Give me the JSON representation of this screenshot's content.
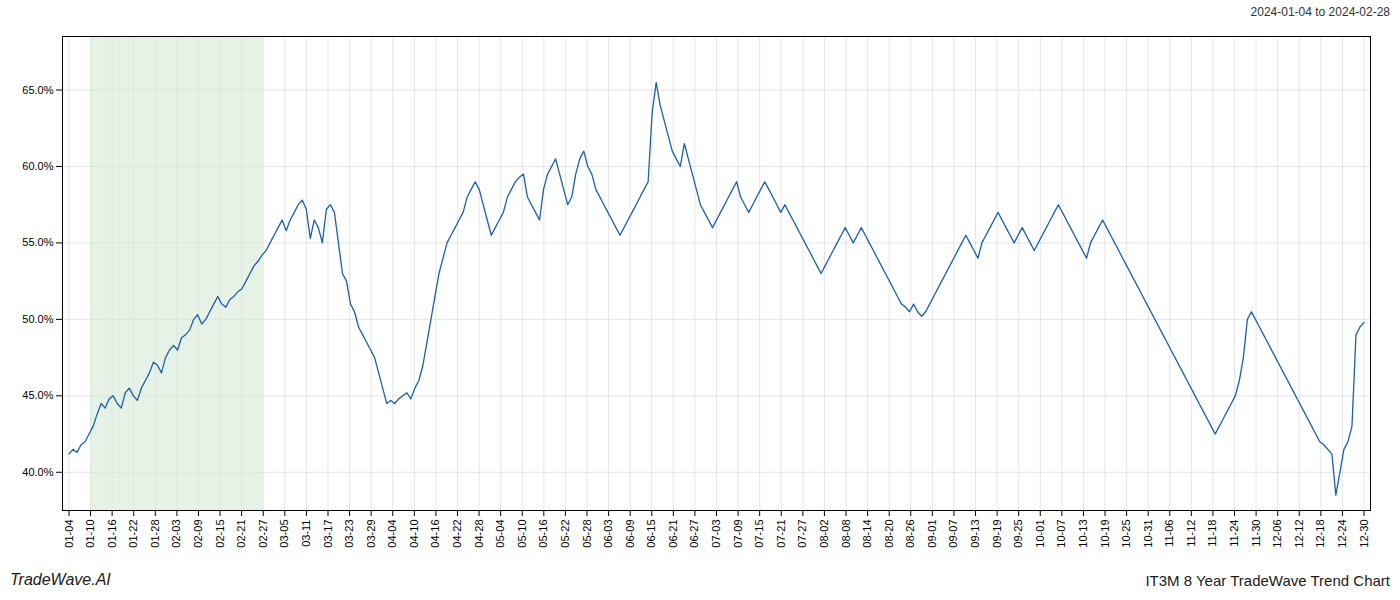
{
  "chart_data": {
    "type": "line",
    "title": "IT3M 8 Year TradeWave Trend Chart",
    "subtitle": "2024-01-04 to 2024-02-28",
    "annotations": [
      "TradeWave.AI"
    ],
    "color": "#1c5faa",
    "grid": true,
    "xlim": [
      -1.61,
      323.61
    ],
    "xticks": [
      {
        "value": 0,
        "label": "01-04"
      },
      {
        "value": 5.3667,
        "label": "01-10"
      },
      {
        "value": 10.7333,
        "label": "01-16"
      },
      {
        "value": 16.1,
        "label": "01-22"
      },
      {
        "value": 21.4667,
        "label": "01-28"
      },
      {
        "value": 26.8333,
        "label": "02-03"
      },
      {
        "value": 32.2,
        "label": "02-09"
      },
      {
        "value": 37.5667,
        "label": "02-15"
      },
      {
        "value": 42.9333,
        "label": "02-21"
      },
      {
        "value": 48.3,
        "label": "02-27"
      },
      {
        "value": 53.6667,
        "label": "03-05"
      },
      {
        "value": 59.0333,
        "label": "03-11"
      },
      {
        "value": 64.4,
        "label": "03-17"
      },
      {
        "value": 69.7667,
        "label": "03-23"
      },
      {
        "value": 75.1333,
        "label": "03-29"
      },
      {
        "value": 80.5,
        "label": "04-04"
      },
      {
        "value": 85.8667,
        "label": "04-10"
      },
      {
        "value": 91.2333,
        "label": "04-16"
      },
      {
        "value": 96.6,
        "label": "04-22"
      },
      {
        "value": 101.9667,
        "label": "04-28"
      },
      {
        "value": 107.3333,
        "label": "05-04"
      },
      {
        "value": 112.7,
        "label": "05-10"
      },
      {
        "value": 118.0667,
        "label": "05-16"
      },
      {
        "value": 123.4333,
        "label": "05-22"
      },
      {
        "value": 128.8,
        "label": "05-28"
      },
      {
        "value": 134.1667,
        "label": "06-03"
      },
      {
        "value": 139.5333,
        "label": "06-09"
      },
      {
        "value": 144.9,
        "label": "06-15"
      },
      {
        "value": 150.2667,
        "label": "06-21"
      },
      {
        "value": 155.6333,
        "label": "06-27"
      },
      {
        "value": 161,
        "label": "07-03"
      },
      {
        "value": 166.3667,
        "label": "07-09"
      },
      {
        "value": 171.7333,
        "label": "07-15"
      },
      {
        "value": 177.1,
        "label": "07-21"
      },
      {
        "value": 182.4667,
        "label": "07-27"
      },
      {
        "value": 187.8333,
        "label": "08-02"
      },
      {
        "value": 193.2,
        "label": "08-08"
      },
      {
        "value": 198.5667,
        "label": "08-14"
      },
      {
        "value": 203.9333,
        "label": "08-20"
      },
      {
        "value": 209.3,
        "label": "08-26"
      },
      {
        "value": 214.6667,
        "label": "09-01"
      },
      {
        "value": 220.0333,
        "label": "09-07"
      },
      {
        "value": 225.4,
        "label": "09-13"
      },
      {
        "value": 230.7667,
        "label": "09-19"
      },
      {
        "value": 236.1333,
        "label": "09-25"
      },
      {
        "value": 241.5,
        "label": "10-01"
      },
      {
        "value": 246.8667,
        "label": "10-07"
      },
      {
        "value": 252.2333,
        "label": "10-13"
      },
      {
        "value": 257.6,
        "label": "10-19"
      },
      {
        "value": 262.9667,
        "label": "10-25"
      },
      {
        "value": 268.3333,
        "label": "10-31"
      },
      {
        "value": 273.7,
        "label": "11-06"
      },
      {
        "value": 279.0667,
        "label": "11-12"
      },
      {
        "value": 284.4333,
        "label": "11-18"
      },
      {
        "value": 289.8,
        "label": "11-24"
      },
      {
        "value": 295.1667,
        "label": "11-30"
      },
      {
        "value": 300.5333,
        "label": "12-06"
      },
      {
        "value": 305.9,
        "label": "12-12"
      },
      {
        "value": 311.2667,
        "label": "12-18"
      },
      {
        "value": 316.6333,
        "label": "12-24"
      },
      {
        "value": 322,
        "label": "12-30"
      }
    ],
    "ylim": [
      37.5,
      68.5
    ],
    "yticks": [
      {
        "value": 40.0,
        "label": "40.0%"
      },
      {
        "value": 45.0,
        "label": "45.0%"
      },
      {
        "value": 50.0,
        "label": "50.0%"
      },
      {
        "value": 55.0,
        "label": "55.0%"
      },
      {
        "value": 60.0,
        "label": "60.0%"
      },
      {
        "value": 65.0,
        "label": "65.0%"
      }
    ],
    "span": {
      "from": "01-10",
      "to": "02-27",
      "color": "#d6ead6"
    },
    "x": [
      0,
      1,
      2,
      3,
      4,
      5,
      6,
      7,
      8,
      9,
      10,
      11,
      12,
      13,
      14,
      15,
      16,
      17,
      18,
      19,
      20,
      21,
      22,
      23,
      24,
      25,
      26,
      27,
      28,
      29,
      30,
      31,
      32,
      33,
      34,
      35,
      36,
      37,
      38,
      39,
      40,
      41,
      42,
      43,
      44,
      45,
      46,
      47,
      48,
      49,
      50,
      51,
      52,
      53,
      54,
      55,
      56,
      57,
      58,
      59,
      60,
      61,
      62,
      63,
      64,
      65,
      66,
      67,
      68,
      69,
      70,
      71,
      72,
      73,
      74,
      75,
      76,
      77,
      78,
      79,
      80,
      81,
      82,
      83,
      84,
      85,
      86,
      87,
      88,
      89,
      90,
      91,
      92,
      93,
      94,
      95,
      96,
      97,
      98,
      99,
      100,
      101,
      102,
      103,
      104,
      105,
      106,
      107,
      108,
      109,
      110,
      111,
      112,
      113,
      114,
      115,
      116,
      117,
      118,
      119,
      120,
      121,
      122,
      123,
      124,
      125,
      126,
      127,
      128,
      129,
      130,
      131,
      132,
      133,
      134,
      135,
      136,
      137,
      138,
      139,
      140,
      141,
      142,
      143,
      144,
      145,
      146,
      147,
      148,
      149,
      150,
      151,
      152,
      153,
      154,
      155,
      156,
      157,
      158,
      159,
      160,
      161,
      162,
      163,
      164,
      165,
      166,
      167,
      168,
      169,
      170,
      171,
      172,
      173,
      174,
      175,
      176,
      177,
      178,
      179,
      180,
      181,
      182,
      183,
      184,
      185,
      186,
      187,
      188,
      189,
      190,
      191,
      192,
      193,
      194,
      195,
      196,
      197,
      198,
      199,
      200,
      201,
      202,
      203,
      204,
      205,
      206,
      207,
      208,
      209,
      210,
      211,
      212,
      213,
      214,
      215,
      216,
      217,
      218,
      219,
      220,
      221,
      222,
      223,
      224,
      225,
      226,
      227,
      228,
      229,
      230,
      231,
      232,
      233,
      234,
      235,
      236,
      237,
      238,
      239,
      240,
      241,
      242,
      243,
      244,
      245,
      246,
      247,
      248,
      249,
      250,
      251,
      252,
      253,
      254,
      255,
      256,
      257,
      258,
      259,
      260,
      261,
      262,
      263,
      264,
      265,
      266,
      267,
      268,
      269,
      270,
      271,
      272,
      273,
      274,
      275,
      276,
      277,
      278,
      279,
      280,
      281,
      282,
      283,
      284,
      285,
      286,
      287,
      288,
      289,
      290,
      291,
      292,
      293,
      294,
      295,
      296,
      297,
      298,
      299,
      300,
      301,
      302,
      303,
      304,
      305,
      306,
      307,
      308,
      309,
      310,
      311,
      312,
      313,
      314,
      315,
      316,
      317,
      318,
      319,
      320,
      321,
      322
    ],
    "values": [
      41.2,
      41.5,
      41.3,
      41.8,
      42.0,
      42.5,
      43.0,
      43.8,
      44.5,
      44.2,
      44.8,
      45.0,
      44.5,
      44.2,
      45.2,
      45.5,
      45.0,
      44.7,
      45.5,
      46.0,
      46.5,
      47.2,
      47.0,
      46.5,
      47.5,
      48.0,
      48.3,
      48.0,
      48.8,
      49.0,
      49.3,
      50.0,
      50.3,
      49.7,
      50.0,
      50.5,
      51.0,
      51.5,
      51.0,
      50.8,
      51.3,
      51.5,
      51.8,
      52.0,
      52.5,
      53.0,
      53.5,
      53.8,
      54.2,
      54.5,
      55.0,
      55.5,
      56.0,
      56.5,
      55.8,
      56.5,
      57.0,
      57.5,
      57.8,
      57.2,
      55.3,
      56.5,
      56.0,
      55.0,
      57.2,
      57.5,
      57.0,
      55.0,
      53.0,
      52.5,
      51.0,
      50.5,
      49.5,
      49.0,
      48.5,
      48.0,
      47.5,
      46.5,
      45.5,
      44.5,
      44.7,
      44.5,
      44.8,
      45.0,
      45.2,
      44.8,
      45.5,
      46.0,
      47.0,
      48.5,
      50.0,
      51.5,
      53.0,
      54.0,
      55.0,
      55.5,
      56.0,
      56.5,
      57.0,
      58.0,
      58.5,
      59.0,
      58.5,
      57.5,
      56.5,
      55.5,
      56.0,
      56.5,
      57.0,
      58.0,
      58.5,
      59.0,
      59.3,
      59.5,
      58.0,
      57.5,
      57.0,
      56.5,
      58.5,
      59.5,
      60.0,
      60.5,
      59.5,
      58.5,
      57.5,
      58.0,
      59.5,
      60.5,
      61.0,
      60.0,
      59.5,
      58.5,
      58.0,
      57.5,
      57.0,
      56.5,
      56.0,
      55.5,
      56.0,
      56.5,
      57.0,
      57.5,
      58.0,
      58.5,
      59.0,
      63.5,
      65.5,
      64.0,
      63.0,
      62.0,
      61.0,
      60.5,
      60.0,
      61.5,
      60.5,
      59.5,
      58.5,
      57.5,
      57.0,
      56.5,
      56.0,
      56.5,
      57.0,
      57.5,
      58.0,
      58.5,
      59.0,
      58.0,
      57.5,
      57.0,
      57.5,
      58.0,
      58.5,
      59.0,
      58.5,
      58.0,
      57.5,
      57.0,
      57.5,
      57.0,
      56.5,
      56.0,
      55.5,
      55.0,
      54.5,
      54.0,
      53.5,
      53.0,
      53.5,
      54.0,
      54.5,
      55.0,
      55.5,
      56.0,
      55.5,
      55.0,
      55.5,
      56.0,
      55.5,
      55.0,
      54.5,
      54.0,
      53.5,
      53.0,
      52.5,
      52.0,
      51.5,
      51.0,
      50.8,
      50.5,
      51.0,
      50.5,
      50.2,
      50.5,
      51.0,
      51.5,
      52.0,
      52.5,
      53.0,
      53.5,
      54.0,
      54.5,
      55.0,
      55.5,
      55.0,
      54.5,
      54.0,
      55.0,
      55.5,
      56.0,
      56.5,
      57.0,
      56.5,
      56.0,
      55.5,
      55.0,
      55.5,
      56.0,
      55.5,
      55.0,
      54.5,
      55.0,
      55.5,
      56.0,
      56.5,
      57.0,
      57.5,
      57.0,
      56.5,
      56.0,
      55.5,
      55.0,
      54.5,
      54.0,
      55.0,
      55.5,
      56.0,
      56.5,
      56.0,
      55.5,
      55.0,
      54.5,
      54.0,
      53.5,
      53.0,
      52.5,
      52.0,
      51.5,
      51.0,
      50.5,
      50.0,
      49.5,
      49.0,
      48.5,
      48.0,
      47.5,
      47.0,
      46.5,
      46.0,
      45.5,
      45.0,
      44.5,
      44.0,
      43.5,
      43.0,
      42.5,
      43.0,
      43.5,
      44.0,
      44.5,
      45.0,
      46.0,
      47.5,
      50.0,
      50.5,
      50.0,
      49.5,
      49.0,
      48.5,
      48.0,
      47.5,
      47.0,
      46.5,
      46.0,
      45.5,
      45.0,
      44.5,
      44.0,
      43.5,
      43.0,
      42.5,
      42.0,
      41.8,
      41.5,
      41.2,
      38.5,
      40.0,
      41.5,
      42.0,
      43.0,
      49.0,
      49.5,
      49.8
    ]
  }
}
